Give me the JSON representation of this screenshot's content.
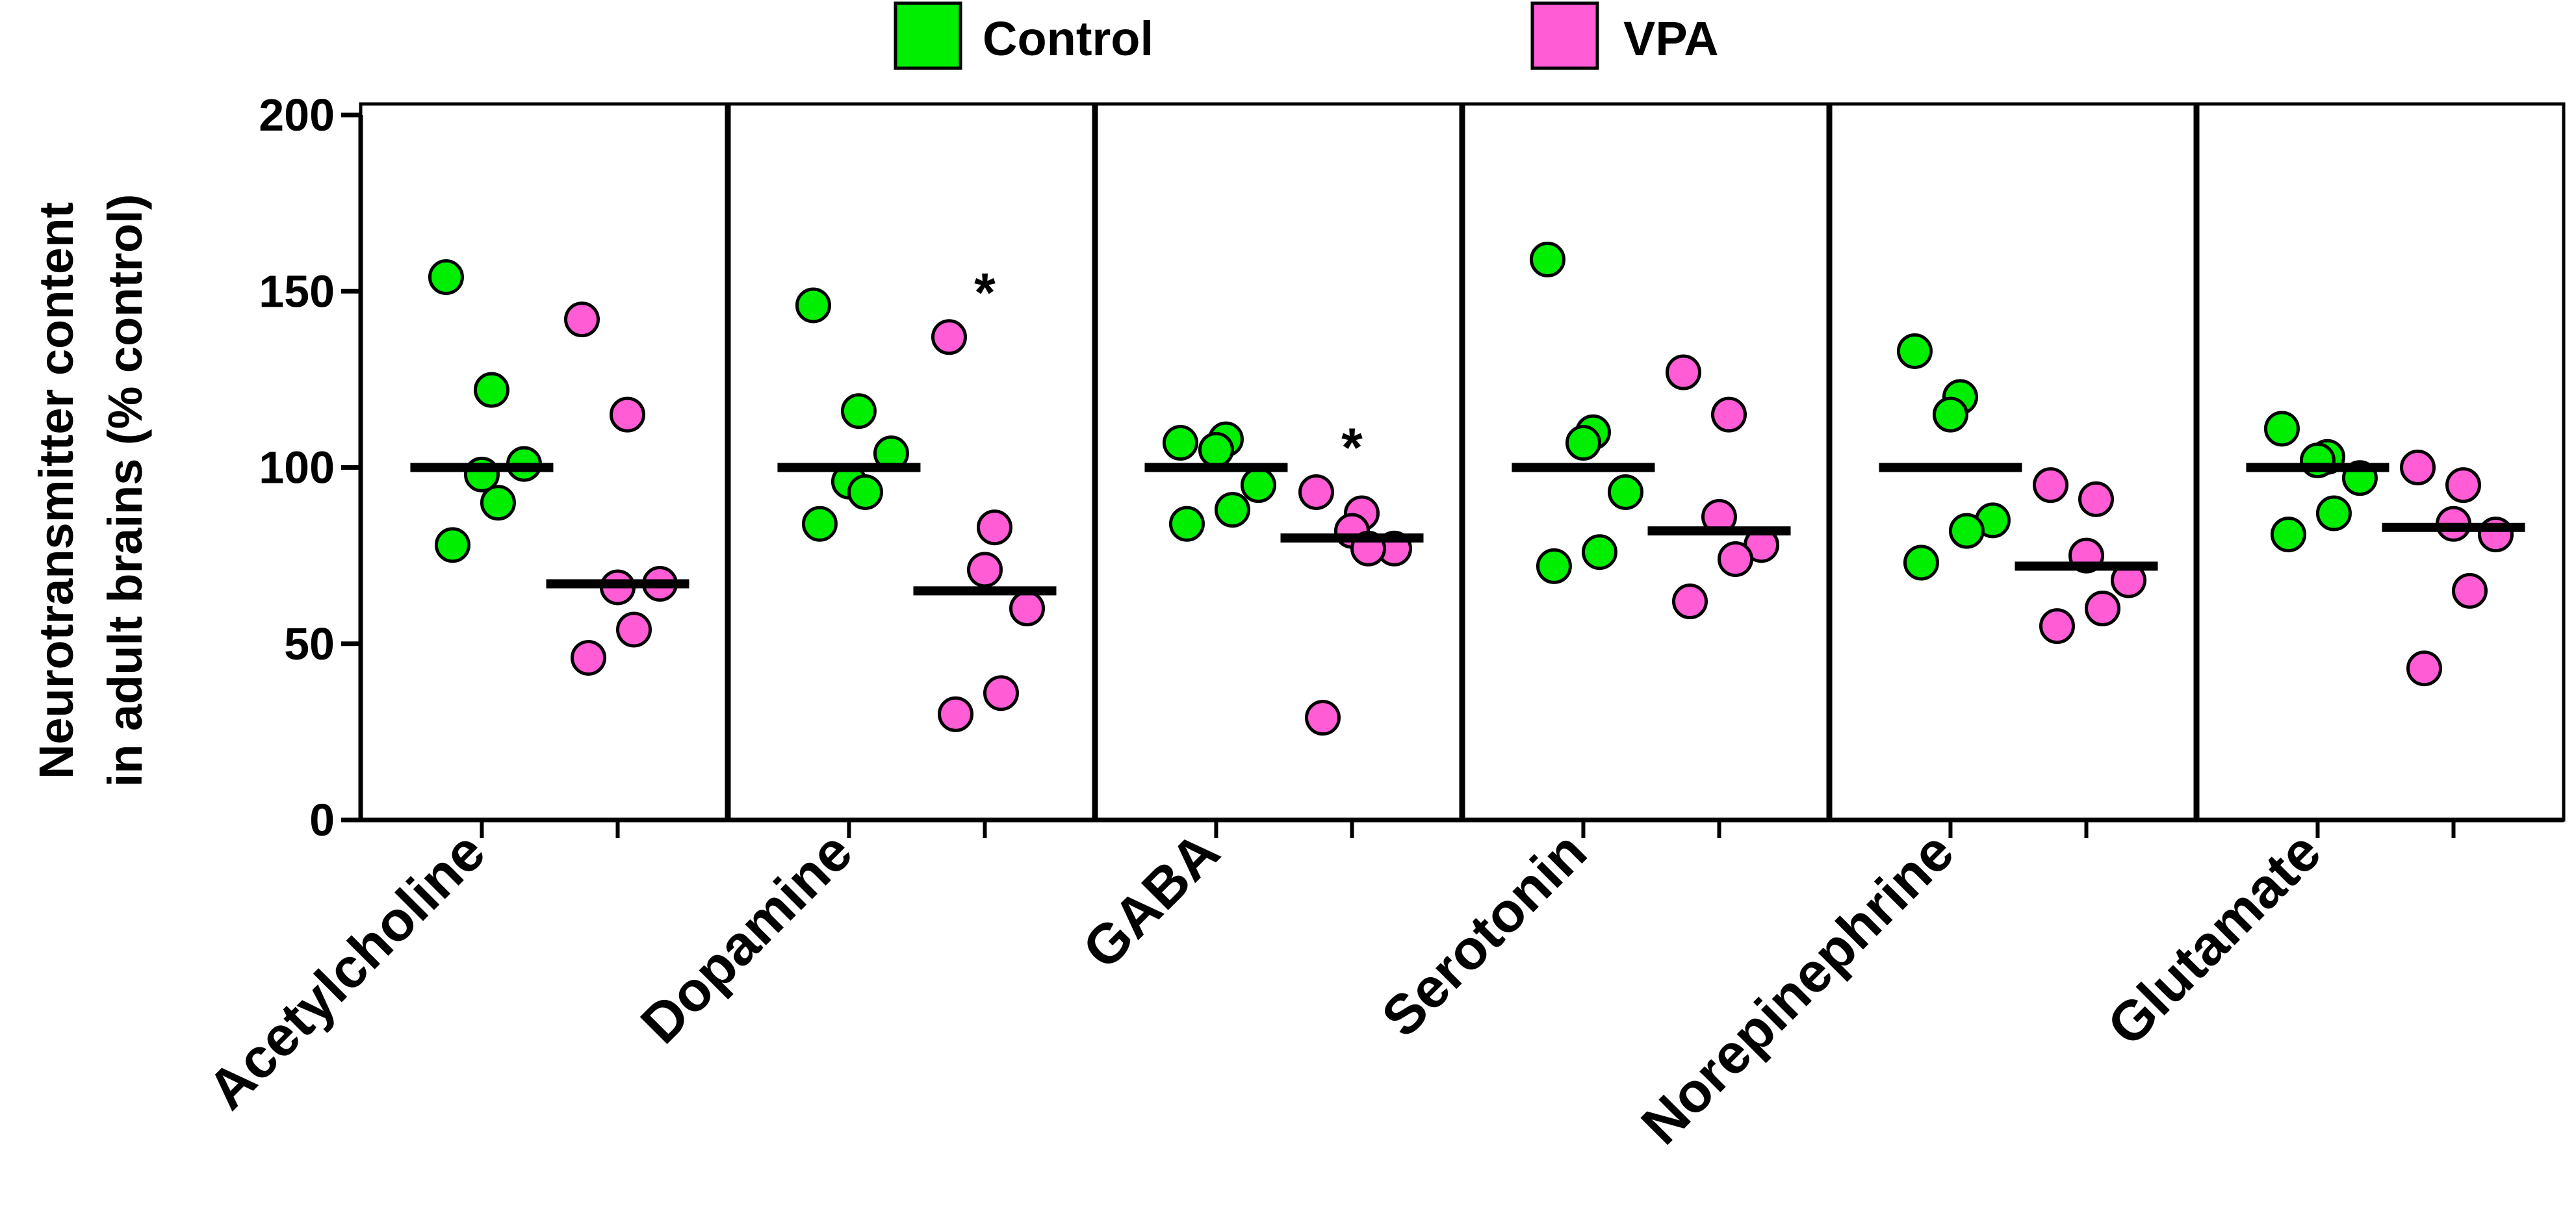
{
  "chart_data": {
    "type": "scatter",
    "title": "",
    "ylabel_lines": [
      "Neurotransmitter content",
      "in adult brains (% control)"
    ],
    "xlabel": "",
    "ylim": [
      0,
      200
    ],
    "yticks": [
      0,
      50,
      100,
      150,
      200
    ],
    "ytick_labels": [
      "0",
      "50",
      "100",
      "150",
      "200"
    ],
    "legend": [
      {
        "name": "Control",
        "color": "#00ee00"
      },
      {
        "name": "VPA",
        "color": "#ff5cd6"
      }
    ],
    "categories": [
      "Acetylcholine",
      "Dopamine",
      "GABA",
      "Serotonin",
      "Norepinephrine",
      "Glutamate"
    ],
    "annotation_symbol": "*",
    "groups": [
      {
        "category": "Acetylcholine",
        "control": {
          "points": [
            154,
            122,
            98,
            101,
            90,
            78
          ],
          "mean": 100
        },
        "vpa": {
          "points": [
            142,
            115,
            66,
            67,
            54,
            46
          ],
          "mean": 67
        },
        "significant": false
      },
      {
        "category": "Dopamine",
        "control": {
          "points": [
            146,
            116,
            96,
            104,
            93,
            84
          ],
          "mean": 100
        },
        "vpa": {
          "points": [
            137,
            83,
            71,
            60,
            36,
            30
          ],
          "mean": 65
        },
        "significant": true
      },
      {
        "category": "GABA",
        "control": {
          "points": [
            107,
            108,
            105,
            95,
            88,
            84
          ],
          "mean": 100
        },
        "vpa": {
          "points": [
            93,
            87,
            82,
            77,
            77,
            29
          ],
          "mean": 80
        },
        "significant": true
      },
      {
        "category": "Serotonin",
        "control": {
          "points": [
            159,
            110,
            107,
            93,
            76,
            72
          ],
          "mean": 100
        },
        "vpa": {
          "points": [
            127,
            115,
            86,
            78,
            74,
            62
          ],
          "mean": 82
        },
        "significant": false
      },
      {
        "category": "Norepinephrine",
        "control": {
          "points": [
            133,
            120,
            115,
            85,
            82,
            73
          ],
          "mean": 100
        },
        "vpa": {
          "points": [
            95,
            91,
            75,
            68,
            60,
            55
          ],
          "mean": 72
        },
        "significant": false
      },
      {
        "category": "Glutamate",
        "control": {
          "points": [
            111,
            103,
            102,
            97,
            87,
            81
          ],
          "mean": 100
        },
        "vpa": {
          "points": [
            100,
            95,
            84,
            81,
            65,
            43
          ],
          "mean": 83
        },
        "significant": false
      }
    ]
  }
}
